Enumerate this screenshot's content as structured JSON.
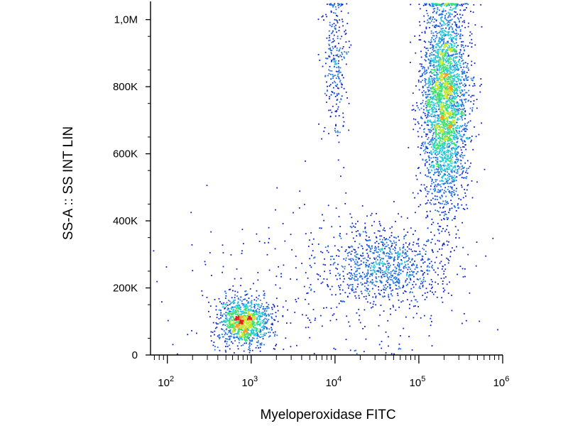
{
  "chart_data": {
    "type": "scatter",
    "title": "",
    "xlabel": "Myeloperoxidase FITC",
    "ylabel": "SS-A :: SS INT LIN",
    "x_scale": "log",
    "xlim": [
      63,
      1000000
    ],
    "ylim": [
      0,
      1050000
    ],
    "grid": false,
    "legend": "none",
    "x_ticks": [
      {
        "value": 100,
        "base": "10",
        "exp": "2"
      },
      {
        "value": 1000,
        "base": "10",
        "exp": "3"
      },
      {
        "value": 10000,
        "base": "10",
        "exp": "4"
      },
      {
        "value": 100000,
        "base": "10",
        "exp": "5"
      },
      {
        "value": 1000000,
        "base": "10",
        "exp": "6"
      }
    ],
    "y_ticks": [
      {
        "value": 0,
        "label": "0"
      },
      {
        "value": 200000,
        "label": "200K"
      },
      {
        "value": 400000,
        "label": "400K"
      },
      {
        "value": 600000,
        "label": "600K"
      },
      {
        "value": 800000,
        "label": "800K"
      },
      {
        "value": 1000000,
        "label": "1,0M"
      }
    ],
    "density_colors": [
      "#0a1ec8",
      "#1f6fe0",
      "#22c8d8",
      "#3ee070",
      "#c8e628",
      "#f8a020",
      "#e81c1c"
    ],
    "populations": [
      {
        "x_center": 800,
        "x_log_spread": 0.16,
        "y_center": 100000,
        "y_spread": 35000,
        "approx_events": 1100
      },
      {
        "x_center": 200000,
        "x_log_spread": 0.14,
        "y_center": 760000,
        "y_spread": 160000,
        "approx_events": 3200
      },
      {
        "x_center": 40000,
        "x_log_spread": 0.35,
        "y_center": 270000,
        "y_spread": 60000,
        "approx_events": 900
      },
      {
        "x_center": 10000,
        "x_log_spread": 0.07,
        "y_center": 880000,
        "y_spread": 110000,
        "approx_events": 280
      },
      {
        "x_center": 8000,
        "x_log_spread": 0.9,
        "y_center": 200000,
        "y_spread": 130000,
        "approx_events": 320
      }
    ]
  }
}
